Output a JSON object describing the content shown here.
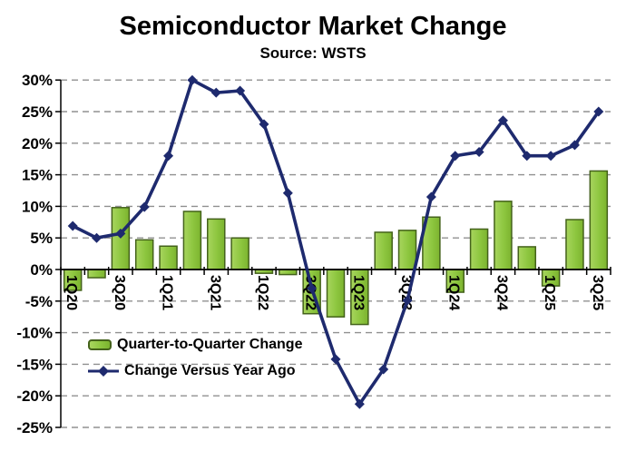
{
  "page": {
    "title": "Semiconductor Market Change",
    "subtitle": "Source: WSTS"
  },
  "legend": {
    "bar_label": "Quarter-to-Quarter Change",
    "line_label": "Change Versus Year Ago"
  },
  "colors": {
    "background": "#ffffff",
    "bar_fill": "#8dc63f",
    "bar_border": "#44621b",
    "line": "#1e2a6e",
    "grid": "#909090",
    "axis": "#000000",
    "text": "#000000"
  },
  "chart_data": {
    "type": "combo",
    "title": "Semiconductor Market Change",
    "subtitle": "Source: WSTS",
    "categories": [
      "1Q20",
      "2Q20",
      "3Q20",
      "4Q20",
      "1Q21",
      "2Q21",
      "3Q21",
      "4Q21",
      "1Q22",
      "2Q22",
      "3Q22",
      "4Q22",
      "1Q23",
      "2Q23",
      "3Q23",
      "4Q23",
      "1Q24",
      "2Q24",
      "3Q24",
      "4Q24",
      "1Q25",
      "2Q25",
      "3Q25"
    ],
    "x_tick_labels_shown": [
      "1Q20",
      "3Q20",
      "1Q21",
      "3Q21",
      "1Q22",
      "3Q22",
      "1Q23",
      "3Q23",
      "1Q24",
      "3Q24",
      "1Q25",
      "3Q25"
    ],
    "series": [
      {
        "name": "Quarter-to-Quarter Change",
        "type": "bar",
        "unit": "%",
        "values": [
          -3.3,
          -1.3,
          9.8,
          4.7,
          3.7,
          9.2,
          8.0,
          5.0,
          -0.6,
          -0.8,
          -7.0,
          -7.5,
          -8.7,
          5.9,
          6.2,
          8.3,
          -3.6,
          6.4,
          10.8,
          3.6,
          -2.6,
          7.9,
          15.6
        ]
      },
      {
        "name": "Change Versus Year Ago",
        "type": "line",
        "unit": "%",
        "values": [
          6.9,
          5.0,
          5.7,
          9.9,
          18.0,
          30.0,
          28.0,
          28.3,
          23.0,
          12.1,
          -3.0,
          -14.2,
          -21.3,
          -15.8,
          -4.9,
          11.5,
          18.0,
          18.6,
          23.6,
          18.0,
          18.0,
          19.7,
          25.0
        ]
      }
    ],
    "xlabel": "",
    "ylabel": "",
    "ylim": [
      -25,
      30
    ],
    "y_ticks": [
      30,
      25,
      20,
      15,
      10,
      5,
      0,
      -5,
      -10,
      -15,
      -20,
      -25
    ],
    "y_tick_format": "percent",
    "grid": "horizontal dashed",
    "legend_position": "inside bottom-left",
    "x_label_rotation": 90
  }
}
